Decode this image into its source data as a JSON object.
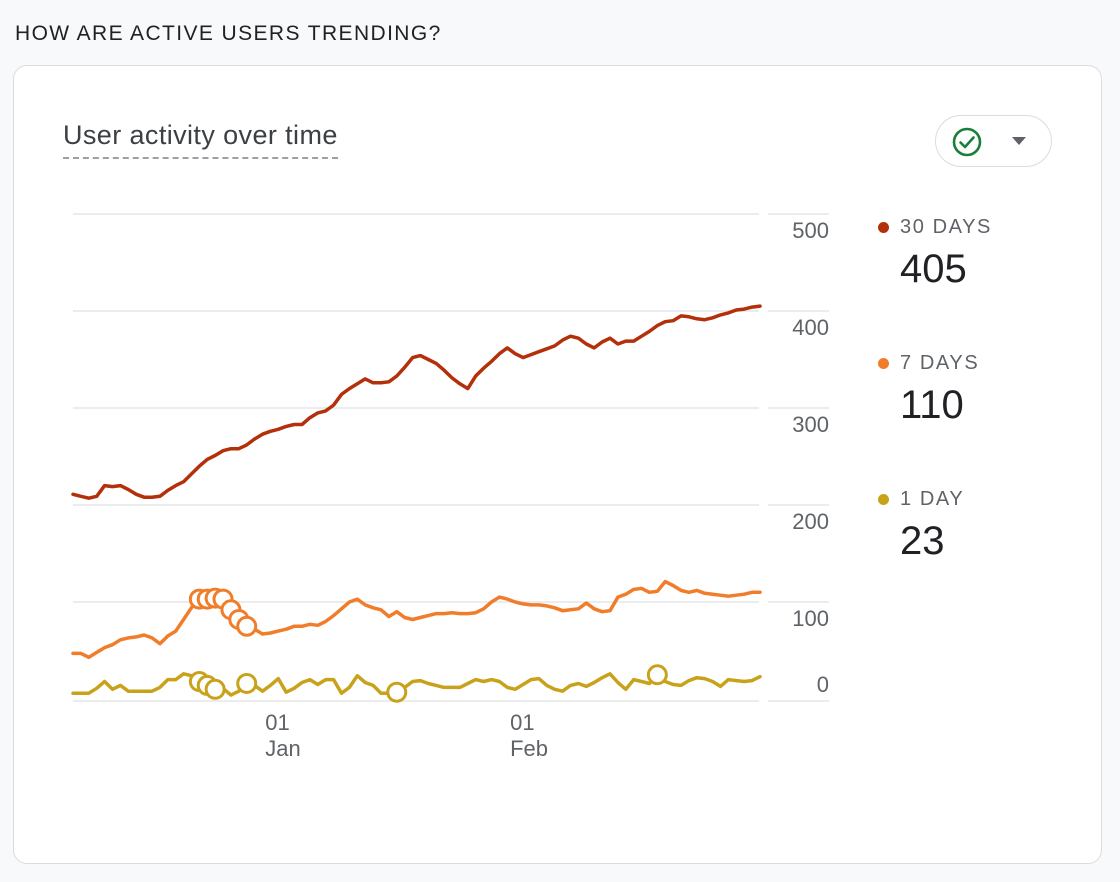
{
  "section_heading": "HOW ARE ACTIVE USERS TRENDING?",
  "card": {
    "title": "User activity over time",
    "compare_toggle_icon": "check-circle-icon",
    "compare_toggle_caret": "caret-down-icon"
  },
  "colors": {
    "thirty_days": "#b3300a",
    "seven_days": "#f07d2a",
    "one_day": "#c9a21b",
    "grid": "#e4e5e7",
    "check": "#188038"
  },
  "legend": [
    {
      "label": "30 DAYS",
      "value": "405"
    },
    {
      "label": "7 DAYS",
      "value": "110"
    },
    {
      "label": "1 DAY",
      "value": "23"
    }
  ],
  "chart_data": {
    "type": "line",
    "title": "User activity over time",
    "x_tick_labels": [
      {
        "day": "01",
        "month": "Jan",
        "index": 26
      },
      {
        "day": "01",
        "month": "Feb",
        "index": 57
      }
    ],
    "y_ticks": [
      0,
      100,
      200,
      300,
      400,
      500
    ],
    "ylim": [
      -15,
      500
    ],
    "grid": true,
    "legend_position": "right",
    "x_count": 88,
    "series": [
      {
        "name": "30 DAYS",
        "values": [
          211,
          209,
          207,
          209,
          220,
          219,
          220,
          216,
          211,
          208,
          208,
          209,
          215,
          220,
          224,
          232,
          240,
          247,
          251,
          256,
          258,
          258,
          262,
          268,
          273,
          276,
          278,
          281,
          283,
          283,
          290,
          295,
          297,
          303,
          314,
          320,
          325,
          330,
          326,
          326,
          327,
          333,
          342,
          352,
          354,
          350,
          346,
          339,
          331,
          325,
          320,
          333,
          341,
          348,
          356,
          362,
          356,
          352,
          355,
          358,
          361,
          364,
          370,
          374,
          372,
          366,
          362,
          368,
          372,
          366,
          369,
          369,
          374,
          379,
          385,
          389,
          390,
          395,
          394,
          392,
          391,
          393,
          396,
          398,
          401,
          402,
          404,
          405
        ]
      },
      {
        "name": "7 DAYS",
        "values": [
          47,
          47,
          43,
          48,
          53,
          56,
          61,
          63,
          64,
          66,
          63,
          57,
          65,
          70,
          82,
          94,
          103,
          103,
          104,
          103,
          92,
          82,
          75,
          72,
          67,
          68,
          70,
          72,
          75,
          75,
          77,
          76,
          80,
          86,
          93,
          100,
          103,
          97,
          94,
          92,
          85,
          90,
          84,
          82,
          84,
          86,
          88,
          88,
          89,
          88,
          88,
          89,
          93,
          100,
          105,
          103,
          100,
          98,
          97,
          97,
          96,
          94,
          91,
          92,
          93,
          99,
          93,
          90,
          91,
          105,
          108,
          113,
          114,
          110,
          111,
          121,
          117,
          112,
          110,
          112,
          109,
          108,
          107,
          106,
          107,
          108,
          110,
          110
        ]
      },
      {
        "name": "1 DAY",
        "values": [
          6,
          6,
          6,
          11,
          18,
          10,
          14,
          8,
          8,
          8,
          8,
          12,
          20,
          20,
          26,
          24,
          18,
          14,
          10,
          11,
          4,
          8,
          16,
          14,
          8,
          14,
          21,
          7,
          11,
          17,
          20,
          15,
          20,
          20,
          6,
          12,
          24,
          17,
          14,
          6,
          6,
          7,
          12,
          18,
          19,
          16,
          14,
          12,
          12,
          12,
          16,
          20,
          18,
          20,
          18,
          12,
          10,
          15,
          20,
          21,
          14,
          10,
          8,
          14,
          16,
          13,
          17,
          22,
          26,
          17,
          10,
          20,
          18,
          16,
          25,
          18,
          15,
          14,
          19,
          22,
          21,
          18,
          13,
          20,
          19,
          18,
          19,
          23
        ]
      }
    ]
  }
}
